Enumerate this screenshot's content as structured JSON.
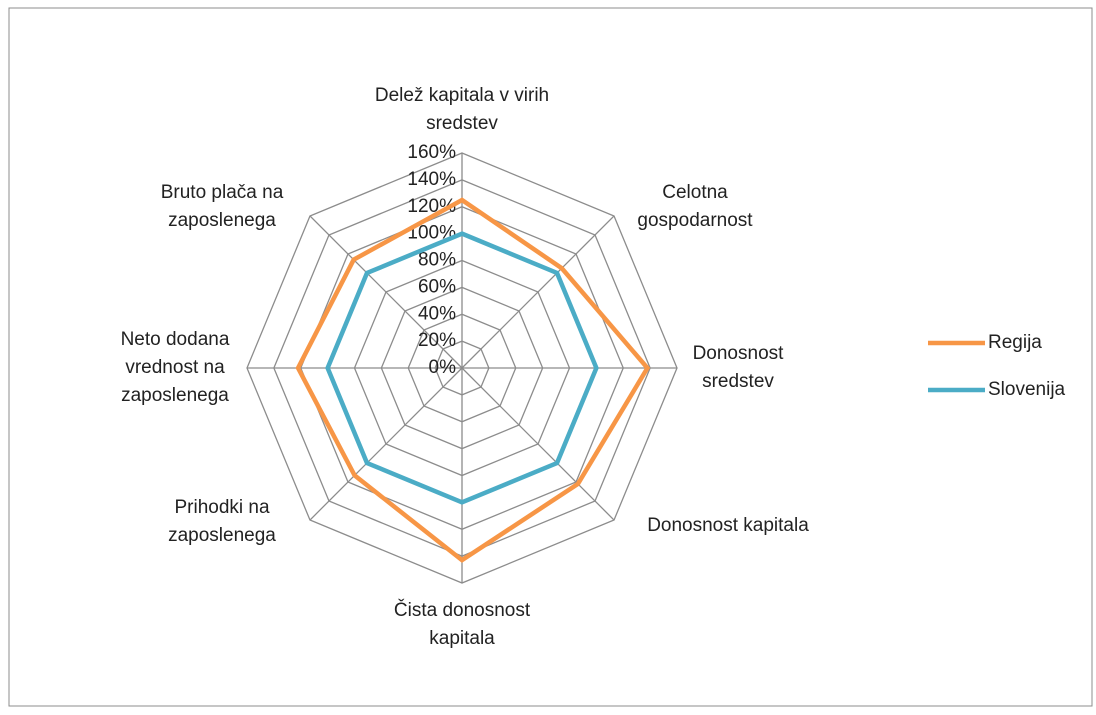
{
  "chart_data": {
    "type": "radar",
    "categories": [
      "Delež kapitala v virih sredstev",
      "Celotna gospodarnost",
      "Donosnost sredstev",
      "Donosnost kapitala",
      "Čista donosnost kapitala",
      "Prihodki na zaposlenega",
      "Neto dodana vrednost na zaposlenega",
      "Bruto plača na zaposlenega"
    ],
    "series": [
      {
        "name": "Regija",
        "color": "#f79646",
        "values": [
          125,
          105,
          138,
          122,
          143,
          113,
          122,
          114
        ]
      },
      {
        "name": "Slovenija",
        "color": "#4bacc6",
        "values": [
          100,
          100,
          100,
          100,
          100,
          100,
          100,
          100
        ]
      }
    ],
    "ylim": [
      0,
      160
    ],
    "yticks": [
      {
        "value": 0,
        "label": "0%"
      },
      {
        "value": 20,
        "label": "20%"
      },
      {
        "value": 40,
        "label": "40%"
      },
      {
        "value": 60,
        "label": "60%"
      },
      {
        "value": 80,
        "label": "80%"
      },
      {
        "value": 100,
        "label": "100%"
      },
      {
        "value": 120,
        "label": "120%"
      },
      {
        "value": 140,
        "label": "140%"
      },
      {
        "value": 160,
        "label": "160%"
      }
    ],
    "grid": true,
    "legend": "right"
  }
}
